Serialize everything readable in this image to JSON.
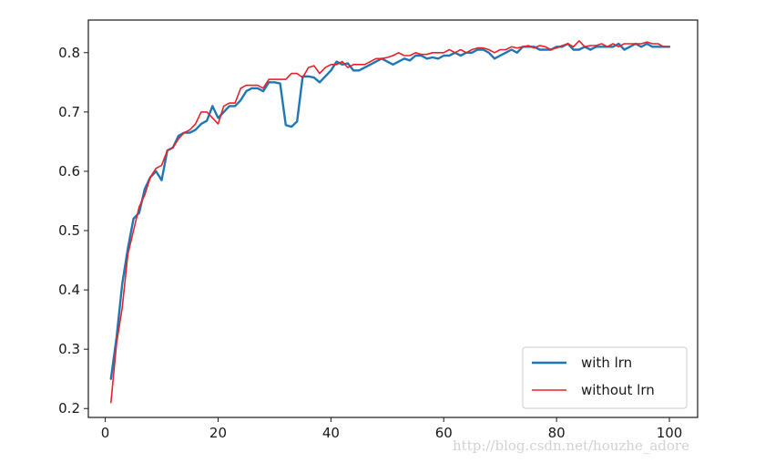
{
  "chart_data": {
    "type": "line",
    "title": "",
    "xlabel": "",
    "ylabel": "",
    "xlim": [
      -3,
      105
    ],
    "ylim": [
      0.185,
      0.855
    ],
    "xticks": [
      0,
      20,
      40,
      60,
      80,
      100
    ],
    "yticks": [
      0.2,
      0.3,
      0.4,
      0.5,
      0.6,
      0.7,
      0.8
    ],
    "xtick_labels": [
      "0",
      "20",
      "40",
      "60",
      "80",
      "100"
    ],
    "ytick_labels": [
      "0.2",
      "0.3",
      "0.4",
      "0.5",
      "0.6",
      "0.7",
      "0.8"
    ],
    "grid": false,
    "legend_position": "lower-right",
    "series": [
      {
        "name": "with lrn",
        "color": "#1f77b4",
        "x": [
          1,
          2,
          3,
          4,
          5,
          6,
          7,
          8,
          9,
          10,
          11,
          12,
          13,
          14,
          15,
          16,
          17,
          18,
          19,
          20,
          21,
          22,
          23,
          24,
          25,
          26,
          27,
          28,
          29,
          30,
          31,
          32,
          33,
          34,
          35,
          36,
          37,
          38,
          39,
          40,
          41,
          42,
          43,
          44,
          45,
          46,
          47,
          48,
          49,
          50,
          51,
          52,
          53,
          54,
          55,
          56,
          57,
          58,
          59,
          60,
          61,
          62,
          63,
          64,
          65,
          66,
          67,
          68,
          69,
          70,
          71,
          72,
          73,
          74,
          75,
          76,
          77,
          78,
          79,
          80,
          81,
          82,
          83,
          84,
          85,
          86,
          87,
          88,
          89,
          90,
          91,
          92,
          93,
          94,
          95,
          96,
          97,
          98,
          99,
          100
        ],
        "values": [
          0.25,
          0.32,
          0.41,
          0.47,
          0.52,
          0.53,
          0.57,
          0.59,
          0.6,
          0.585,
          0.635,
          0.64,
          0.66,
          0.665,
          0.665,
          0.67,
          0.68,
          0.685,
          0.71,
          0.69,
          0.7,
          0.71,
          0.71,
          0.72,
          0.735,
          0.74,
          0.74,
          0.735,
          0.75,
          0.75,
          0.748,
          0.678,
          0.675,
          0.684,
          0.76,
          0.76,
          0.758,
          0.75,
          0.76,
          0.77,
          0.785,
          0.78,
          0.782,
          0.77,
          0.77,
          0.775,
          0.78,
          0.785,
          0.79,
          0.785,
          0.78,
          0.785,
          0.79,
          0.787,
          0.795,
          0.795,
          0.79,
          0.792,
          0.79,
          0.795,
          0.795,
          0.8,
          0.795,
          0.8,
          0.8,
          0.805,
          0.805,
          0.8,
          0.79,
          0.795,
          0.8,
          0.805,
          0.8,
          0.81,
          0.81,
          0.81,
          0.805,
          0.805,
          0.805,
          0.81,
          0.81,
          0.815,
          0.805,
          0.805,
          0.81,
          0.805,
          0.81,
          0.81,
          0.81,
          0.81,
          0.815,
          0.805,
          0.81,
          0.815,
          0.81,
          0.815,
          0.81,
          0.81,
          0.81,
          0.81
        ]
      },
      {
        "name": "without lrn",
        "color": "#e8222a",
        "x": [
          1,
          2,
          3,
          4,
          5,
          6,
          7,
          8,
          9,
          10,
          11,
          12,
          13,
          14,
          15,
          16,
          17,
          18,
          19,
          20,
          21,
          22,
          23,
          24,
          25,
          26,
          27,
          28,
          29,
          30,
          31,
          32,
          33,
          34,
          35,
          36,
          37,
          38,
          39,
          40,
          41,
          42,
          43,
          44,
          45,
          46,
          47,
          48,
          49,
          50,
          51,
          52,
          53,
          54,
          55,
          56,
          57,
          58,
          59,
          60,
          61,
          62,
          63,
          64,
          65,
          66,
          67,
          68,
          69,
          70,
          71,
          72,
          73,
          74,
          75,
          76,
          77,
          78,
          79,
          80,
          81,
          82,
          83,
          84,
          85,
          86,
          87,
          88,
          89,
          90,
          91,
          92,
          93,
          94,
          95,
          96,
          97,
          98,
          99,
          100
        ],
        "values": [
          0.21,
          0.31,
          0.37,
          0.46,
          0.5,
          0.54,
          0.56,
          0.59,
          0.605,
          0.61,
          0.635,
          0.64,
          0.655,
          0.665,
          0.67,
          0.68,
          0.7,
          0.7,
          0.69,
          0.68,
          0.71,
          0.715,
          0.715,
          0.74,
          0.745,
          0.745,
          0.745,
          0.74,
          0.755,
          0.755,
          0.755,
          0.755,
          0.765,
          0.765,
          0.758,
          0.775,
          0.778,
          0.765,
          0.775,
          0.78,
          0.78,
          0.785,
          0.775,
          0.78,
          0.78,
          0.78,
          0.785,
          0.79,
          0.79,
          0.792,
          0.795,
          0.8,
          0.795,
          0.795,
          0.8,
          0.797,
          0.797,
          0.8,
          0.8,
          0.8,
          0.805,
          0.8,
          0.805,
          0.8,
          0.805,
          0.808,
          0.808,
          0.805,
          0.8,
          0.805,
          0.805,
          0.81,
          0.808,
          0.81,
          0.812,
          0.808,
          0.812,
          0.81,
          0.805,
          0.808,
          0.812,
          0.815,
          0.81,
          0.82,
          0.81,
          0.812,
          0.812,
          0.815,
          0.81,
          0.815,
          0.81,
          0.815,
          0.815,
          0.815,
          0.815,
          0.818,
          0.815,
          0.815,
          0.81,
          0.81
        ]
      }
    ],
    "watermark": "http://blog.csdn.net/houzhe_adore"
  }
}
